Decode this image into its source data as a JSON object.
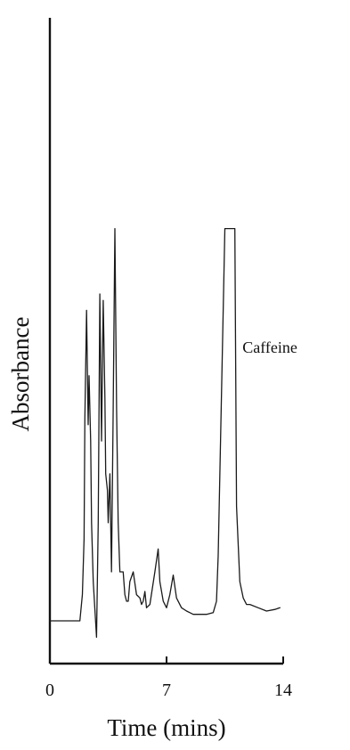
{
  "chart_data": {
    "type": "line",
    "title": "",
    "xlabel": "Time (mins)",
    "ylabel": "Absorbance",
    "xlim": [
      0,
      14
    ],
    "ylim": [
      0,
      1
    ],
    "x_ticks": [
      0,
      7,
      14
    ],
    "x_tick_labels": [
      "0",
      "7",
      "14"
    ],
    "y_ticks_shown": false,
    "grid": false,
    "annotations": [
      {
        "text": "Caffeine",
        "x": 13.2,
        "y": 0.82
      }
    ],
    "series": [
      {
        "x": [
          0,
          1.8,
          1.95,
          2.05,
          2.1,
          2.2,
          2.3,
          2.35,
          2.45,
          2.5,
          2.6,
          2.8,
          2.9,
          3.0,
          3.1,
          3.2,
          3.3,
          3.35,
          3.45,
          3.5,
          3.6,
          3.7,
          3.8,
          3.9,
          4.0,
          4.1,
          4.2,
          4.4,
          4.5,
          4.6,
          4.7,
          4.8,
          5.0,
          5.2,
          5.4,
          5.5,
          5.6,
          5.7,
          5.8,
          6.0,
          6.3,
          6.5,
          6.6,
          6.8,
          6.9,
          7.0,
          7.2,
          7.4,
          7.6,
          7.9,
          8.2,
          8.4,
          8.6,
          8.9,
          9.4,
          9.8,
          10.0,
          10.1,
          10.5,
          11.1,
          11.2,
          11.4,
          11.6,
          11.8,
          12.0,
          12.5,
          13.0,
          13.5,
          13.8
        ],
        "y": [
          0.0,
          0.0,
          0.08,
          0.25,
          0.62,
          0.95,
          0.6,
          0.75,
          0.55,
          0.3,
          0.12,
          -0.05,
          0.3,
          1.0,
          0.55,
          0.98,
          0.68,
          0.45,
          0.4,
          0.3,
          0.45,
          0.15,
          0.65,
          1.2,
          0.65,
          0.3,
          0.15,
          0.15,
          0.08,
          0.06,
          0.06,
          0.12,
          0.15,
          0.08,
          0.07,
          0.05,
          0.06,
          0.09,
          0.04,
          0.05,
          0.15,
          0.22,
          0.12,
          0.06,
          0.05,
          0.04,
          0.08,
          0.14,
          0.07,
          0.04,
          0.03,
          0.025,
          0.02,
          0.02,
          0.02,
          0.025,
          0.06,
          0.2,
          1.2,
          1.2,
          0.35,
          0.12,
          0.07,
          0.05,
          0.05,
          0.04,
          0.03,
          0.035,
          0.04
        ]
      }
    ]
  }
}
